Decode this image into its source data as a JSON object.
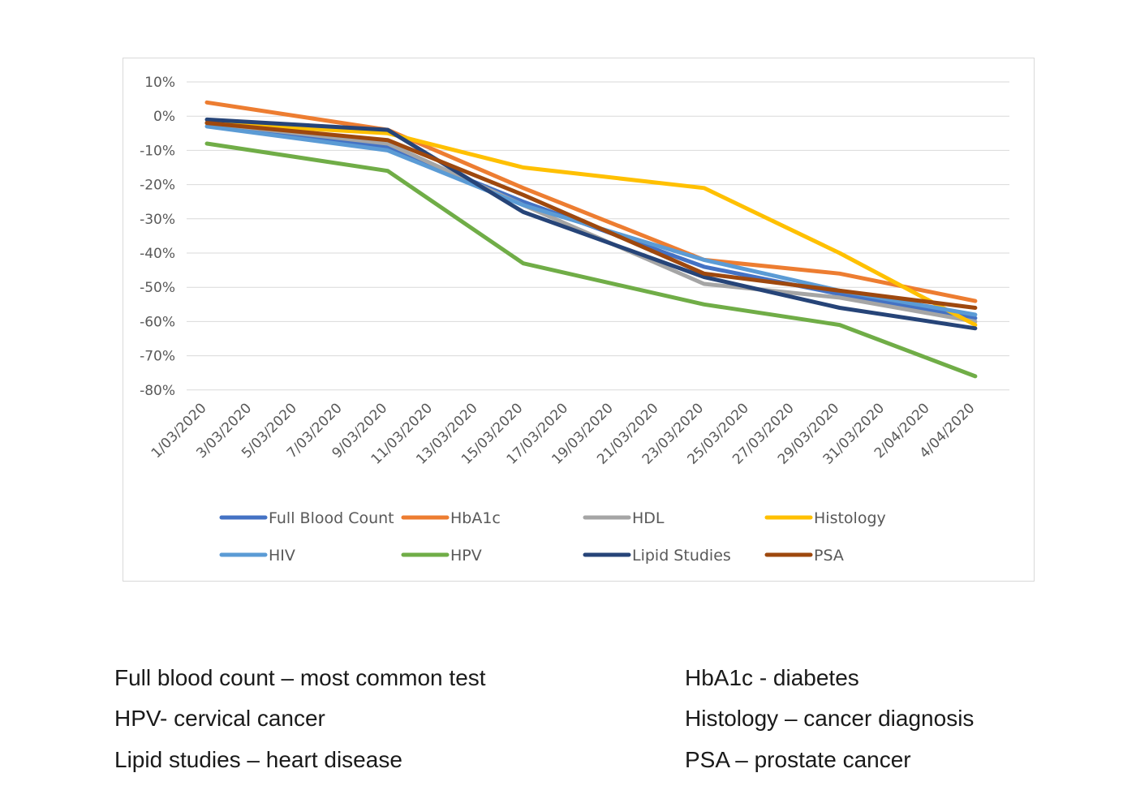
{
  "chart_data": {
    "type": "line",
    "x": [
      "1/03/2020",
      "3/03/2020",
      "5/03/2020",
      "7/03/2020",
      "9/03/2020",
      "11/03/2020",
      "13/03/2020",
      "15/03/2020",
      "17/03/2020",
      "19/03/2020",
      "21/03/2020",
      "23/03/2020",
      "25/03/2020",
      "27/03/2020",
      "29/03/2020",
      "31/03/2020",
      "2/04/2020",
      "4/04/2020"
    ],
    "yticks": [
      "10%",
      "0%",
      "-10%",
      "-20%",
      "-30%",
      "-40%",
      "-50%",
      "-60%",
      "-70%",
      "-80%"
    ],
    "ylim": [
      -80,
      10
    ],
    "grid": true,
    "legend_position": "bottom",
    "series": [
      {
        "name": "Full Blood Count",
        "color": "#4472c4",
        "x": [
          "1/03/2020",
          "9/03/2020",
          "15/03/2020",
          "23/03/2020",
          "29/03/2020",
          "4/04/2020"
        ],
        "values": [
          -2,
          -9,
          -25,
          -44,
          -52,
          -59
        ]
      },
      {
        "name": "HbA1c",
        "color": "#ed7d31",
        "x": [
          "1/03/2020",
          "9/03/2020",
          "15/03/2020",
          "23/03/2020",
          "29/03/2020",
          "4/04/2020"
        ],
        "values": [
          4,
          -4,
          -21,
          -42,
          -46,
          -54
        ]
      },
      {
        "name": "HDL",
        "color": "#a5a5a5",
        "x": [
          "1/03/2020",
          "9/03/2020",
          "15/03/2020",
          "23/03/2020",
          "29/03/2020",
          "4/04/2020"
        ],
        "values": [
          -2,
          -8,
          -26,
          -49,
          -53,
          -60
        ]
      },
      {
        "name": "Histology",
        "color": "#ffc000",
        "x": [
          "1/03/2020",
          "9/03/2020",
          "15/03/2020",
          "23/03/2020",
          "29/03/2020",
          "4/04/2020"
        ],
        "values": [
          -2,
          -5,
          -15,
          -21,
          -40,
          -61
        ]
      },
      {
        "name": "HIV",
        "color": "#5b9bd5",
        "x": [
          "1/03/2020",
          "9/03/2020",
          "15/03/2020",
          "23/03/2020",
          "29/03/2020",
          "4/04/2020"
        ],
        "values": [
          -3,
          -10,
          -26,
          -42,
          -51,
          -58
        ]
      },
      {
        "name": "HPV",
        "color": "#70ad47",
        "x": [
          "1/03/2020",
          "9/03/2020",
          "15/03/2020",
          "23/03/2020",
          "29/03/2020",
          "4/04/2020"
        ],
        "values": [
          -8,
          -16,
          -43,
          -55,
          -61,
          -76
        ]
      },
      {
        "name": "Lipid Studies",
        "color": "#264478",
        "x": [
          "1/03/2020",
          "9/03/2020",
          "15/03/2020",
          "23/03/2020",
          "29/03/2020",
          "4/04/2020"
        ],
        "values": [
          -1,
          -4,
          -28,
          -47,
          -56,
          -62
        ]
      },
      {
        "name": "PSA",
        "color": "#9e480e",
        "x": [
          "1/03/2020",
          "9/03/2020",
          "15/03/2020",
          "23/03/2020",
          "29/03/2020",
          "4/04/2020"
        ],
        "values": [
          -2,
          -7,
          -23,
          -46,
          -51,
          -56
        ]
      }
    ]
  },
  "notes": [
    "Full blood count – most common test",
    "HbA1c - diabetes",
    "HPV- cervical cancer",
    "Histology – cancer diagnosis",
    "Lipid studies – heart disease",
    "PSA – prostate cancer"
  ]
}
